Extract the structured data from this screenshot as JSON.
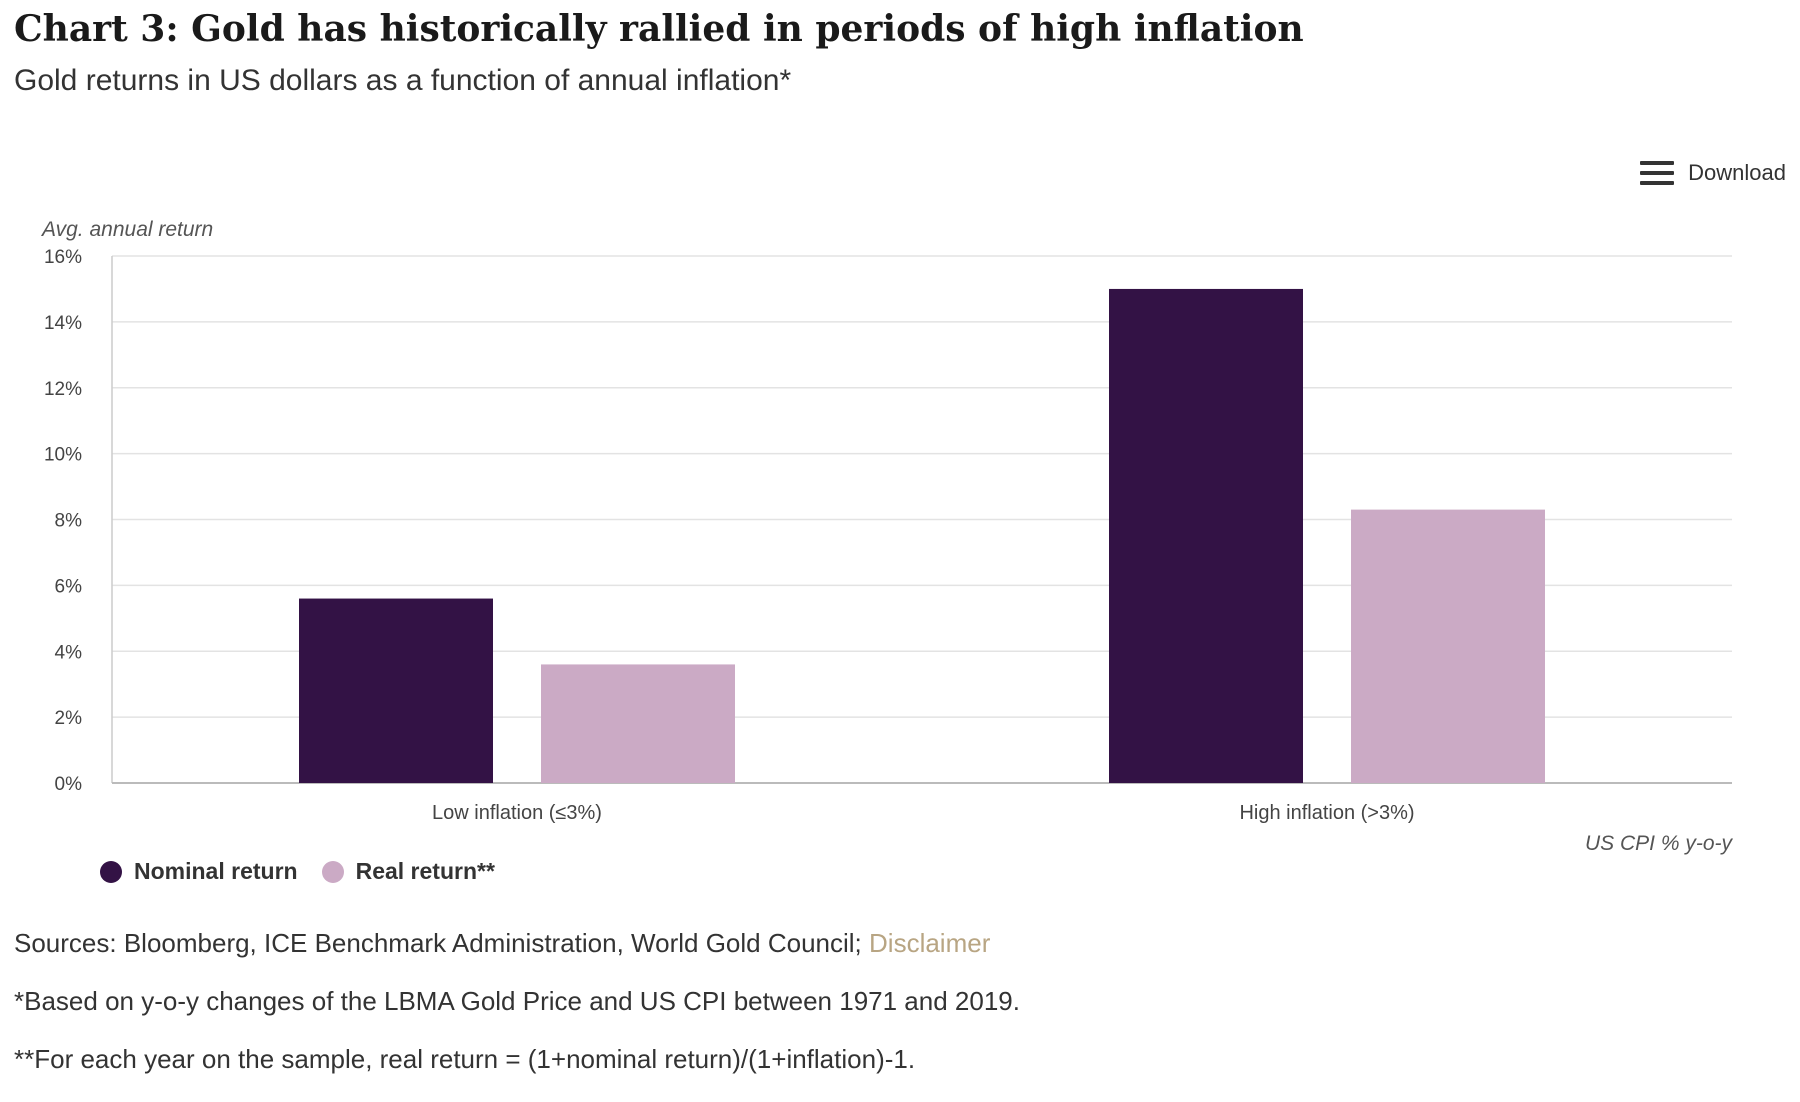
{
  "header": {
    "title": "Chart 3: Gold has historically rallied in periods of high inflation",
    "subtitle": "Gold returns in US dollars as a function of annual inflation*"
  },
  "toolbar": {
    "download_label": "Download",
    "download_icon": "hamburger-menu-icon"
  },
  "chart_data": {
    "type": "bar",
    "ylabel": "Avg. annual return",
    "xlabel": "US CPI % y-o-y",
    "categories": [
      "Low inflation (≤3%)",
      "High inflation (>3%)"
    ],
    "ylim": [
      0,
      16
    ],
    "yticks": [
      "0%",
      "2%",
      "4%",
      "6%",
      "8%",
      "10%",
      "12%",
      "14%",
      "16%"
    ],
    "grid": true,
    "legend_position": "bottom-left",
    "series": [
      {
        "name": "Nominal return",
        "color": "#331245",
        "values": [
          5.6,
          15.0
        ]
      },
      {
        "name": "Real return**",
        "color": "#cbaac5",
        "values": [
          3.6,
          8.3
        ]
      }
    ]
  },
  "notes": {
    "sources_prefix": "Sources: Bloomberg, ICE Benchmark Administration, World Gold Council;",
    "disclaimer_label": "Disclaimer",
    "footnote1": "*Based on y-o-y changes of the LBMA Gold Price and US CPI between 1971 and 2019.",
    "footnote2": "**For each year on the sample, real return = (1+nominal return)/(1+inflation)-1."
  }
}
